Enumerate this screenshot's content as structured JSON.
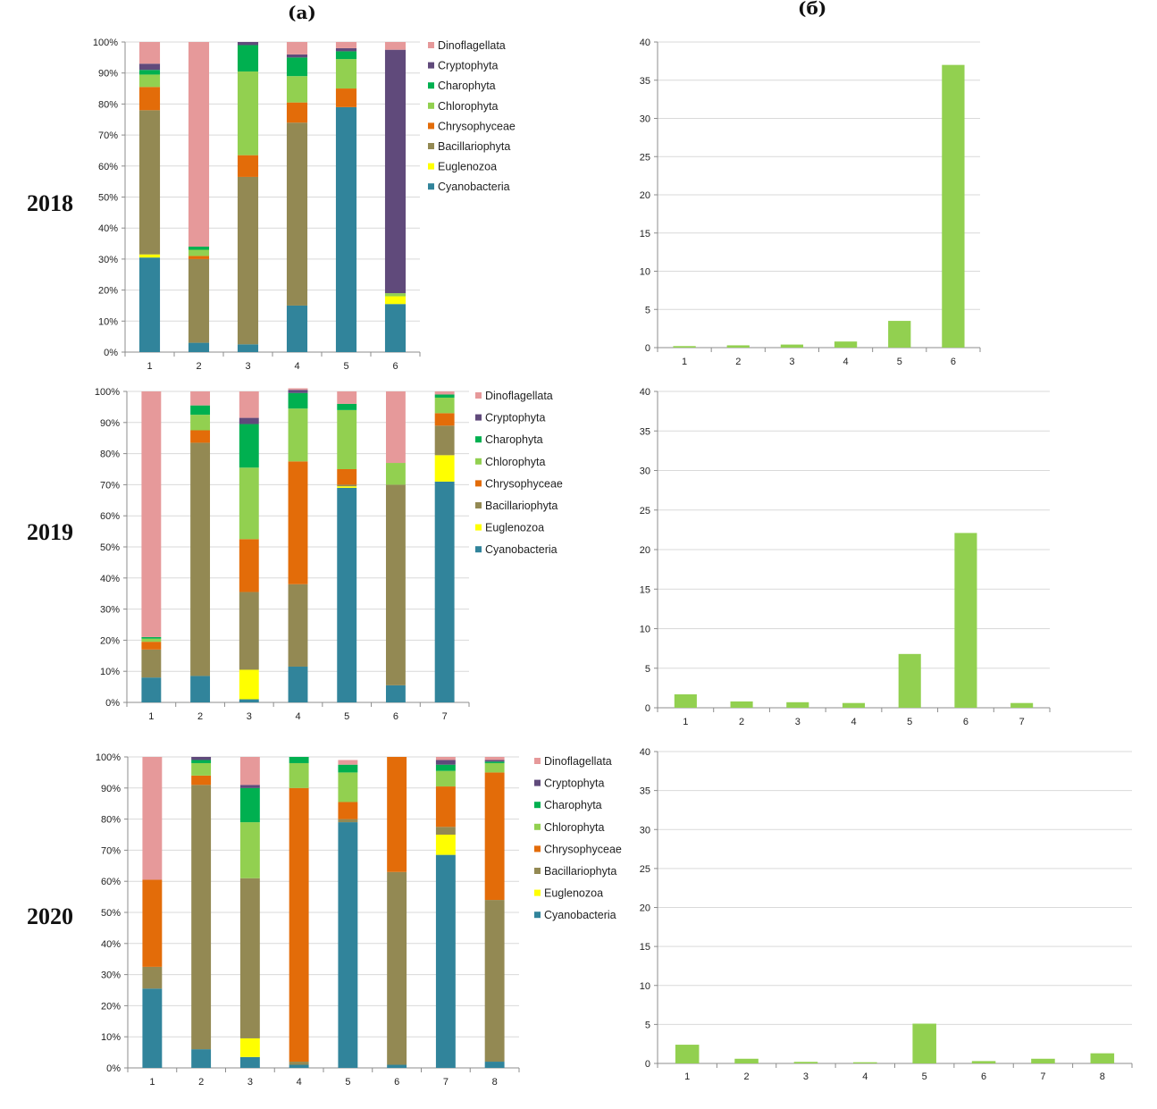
{
  "figure": {
    "panel_a_label": "(a)",
    "panel_b_label": "(б)",
    "year_labels": [
      "2018",
      "2019",
      "2020"
    ]
  },
  "chart_data": [
    {
      "id": "a2018",
      "type": "bar",
      "stacked": true,
      "percent": true,
      "year": "2018",
      "panel": "(a)",
      "categories": [
        "1",
        "2",
        "3",
        "4",
        "5",
        "6"
      ],
      "ylim": [
        0,
        100
      ],
      "yticks": [
        0,
        10,
        20,
        30,
        40,
        50,
        60,
        70,
        80,
        90,
        100
      ],
      "ytick_suffix": "%",
      "grid": true,
      "legend": "right",
      "series": [
        {
          "name": "Cyanobacteria",
          "color": "#31849b",
          "values": [
            30.5,
            3,
            2.5,
            15,
            79,
            15.5
          ]
        },
        {
          "name": "Euglenozoa",
          "color": "#ffff00",
          "values": [
            1,
            0,
            0,
            0,
            0,
            2.5
          ]
        },
        {
          "name": "Bacillariophyta",
          "color": "#938953",
          "values": [
            46.5,
            27,
            54,
            59,
            0,
            0
          ]
        },
        {
          "name": "Chrysophyceae",
          "color": "#e36c09",
          "values": [
            7.5,
            1,
            7,
            6.5,
            6,
            0
          ]
        },
        {
          "name": "Chlorophyta",
          "color": "#92d050",
          "values": [
            4,
            2,
            27,
            8.5,
            9.5,
            1
          ]
        },
        {
          "name": "Charophyta",
          "color": "#00b050",
          "values": [
            1.5,
            1,
            8.5,
            6,
            2.5,
            0
          ]
        },
        {
          "name": "Cryptophyta",
          "color": "#604a7b",
          "values": [
            2,
            0,
            1,
            1,
            1,
            78.5
          ]
        },
        {
          "name": "Dinoflagellata",
          "color": "#e6999a",
          "values": [
            7,
            66,
            0,
            4,
            2,
            2.5
          ]
        }
      ]
    },
    {
      "id": "b2018",
      "type": "bar",
      "year": "2018",
      "panel": "(б)",
      "categories": [
        "1",
        "2",
        "3",
        "4",
        "5",
        "6"
      ],
      "values": [
        0.2,
        0.3,
        0.4,
        0.8,
        3.5,
        37
      ],
      "ylim": [
        0,
        40
      ],
      "yticks": [
        0,
        5,
        10,
        15,
        20,
        25,
        30,
        35,
        40
      ],
      "grid": true,
      "color": "#92d050"
    },
    {
      "id": "a2019",
      "type": "bar",
      "stacked": true,
      "percent": true,
      "year": "2019",
      "panel": "(a)",
      "categories": [
        "1",
        "2",
        "3",
        "4",
        "5",
        "6",
        "7"
      ],
      "ylim": [
        0,
        100
      ],
      "yticks": [
        0,
        10,
        20,
        30,
        40,
        50,
        60,
        70,
        80,
        90,
        100
      ],
      "ytick_suffix": "%",
      "grid": true,
      "legend": "right",
      "series": [
        {
          "name": "Cyanobacteria",
          "color": "#31849b",
          "values": [
            8,
            8.5,
            1,
            11.5,
            69,
            5.5,
            71
          ]
        },
        {
          "name": "Euglenozoa",
          "color": "#ffff00",
          "values": [
            0,
            0,
            9.5,
            0,
            0.5,
            0,
            8.5
          ]
        },
        {
          "name": "Bacillariophyta",
          "color": "#938953",
          "values": [
            9,
            75,
            25,
            26.5,
            0.5,
            64.5,
            9.5
          ]
        },
        {
          "name": "Chrysophyceae",
          "color": "#e36c09",
          "values": [
            2.5,
            4,
            17,
            39.5,
            5,
            0,
            4
          ]
        },
        {
          "name": "Chlorophyta",
          "color": "#92d050",
          "values": [
            1,
            5,
            23,
            17,
            19,
            7,
            5
          ]
        },
        {
          "name": "Charophyta",
          "color": "#00b050",
          "values": [
            0.5,
            3,
            14,
            5,
            2,
            0,
            1
          ]
        },
        {
          "name": "Cryptophyta",
          "color": "#604a7b",
          "values": [
            0,
            0,
            2,
            1,
            0,
            0,
            0
          ]
        },
        {
          "name": "Dinoflagellata",
          "color": "#e6999a",
          "values": [
            79,
            4.5,
            8.5,
            0.5,
            4,
            23,
            1
          ]
        }
      ]
    },
    {
      "id": "b2019",
      "type": "bar",
      "year": "2019",
      "panel": "(б)",
      "categories": [
        "1",
        "2",
        "3",
        "4",
        "5",
        "6",
        "7"
      ],
      "values": [
        1.7,
        0.8,
        0.7,
        0.6,
        6.8,
        22.1,
        0.6
      ],
      "ylim": [
        0,
        40
      ],
      "yticks": [
        0,
        5,
        10,
        15,
        20,
        25,
        30,
        35,
        40
      ],
      "grid": true,
      "color": "#92d050"
    },
    {
      "id": "a2020",
      "type": "bar",
      "stacked": true,
      "percent": true,
      "year": "2020",
      "panel": "(a)",
      "categories": [
        "1",
        "2",
        "3",
        "4",
        "5",
        "6",
        "7",
        "8"
      ],
      "ylim": [
        0,
        100
      ],
      "yticks": [
        0,
        10,
        20,
        30,
        40,
        50,
        60,
        70,
        80,
        90,
        100
      ],
      "ytick_suffix": "%",
      "grid": true,
      "legend": "right",
      "series": [
        {
          "name": "Cyanobacteria",
          "color": "#31849b",
          "values": [
            25.5,
            6,
            3.5,
            1,
            79,
            1,
            68.5,
            2
          ]
        },
        {
          "name": "Euglenozoa",
          "color": "#ffff00",
          "values": [
            0,
            0,
            6,
            0,
            0,
            0,
            6.5,
            0
          ]
        },
        {
          "name": "Bacillariophyta",
          "color": "#938953",
          "values": [
            7,
            85,
            51.5,
            1,
            1,
            62,
            2.5,
            52
          ]
        },
        {
          "name": "Chrysophyceae",
          "color": "#e36c09",
          "values": [
            28,
            3,
            0,
            88,
            5.5,
            37,
            13,
            41
          ]
        },
        {
          "name": "Chlorophyta",
          "color": "#92d050",
          "values": [
            0,
            4,
            18,
            8,
            9.5,
            0,
            5,
            3
          ]
        },
        {
          "name": "Charophyta",
          "color": "#00b050",
          "values": [
            0,
            1,
            11,
            2,
            2.5,
            0,
            2,
            0.5
          ]
        },
        {
          "name": "Cryptophyta",
          "color": "#604a7b",
          "values": [
            0,
            1,
            1,
            0,
            0,
            0,
            1.5,
            0.5
          ]
        },
        {
          "name": "Dinoflagellata",
          "color": "#e6999a",
          "values": [
            39.5,
            0,
            9,
            0,
            1.5,
            0,
            1,
            1
          ]
        }
      ]
    },
    {
      "id": "b2020",
      "type": "bar",
      "year": "2020",
      "panel": "(б)",
      "categories": [
        "1",
        "2",
        "3",
        "4",
        "5",
        "6",
        "7",
        "8"
      ],
      "values": [
        2.4,
        0.6,
        0.2,
        0.15,
        5.1,
        0.3,
        0.6,
        1.3
      ],
      "ylim": [
        0,
        40
      ],
      "yticks": [
        0,
        5,
        10,
        15,
        20,
        25,
        30,
        35,
        40
      ],
      "grid": true,
      "color": "#92d050"
    }
  ]
}
